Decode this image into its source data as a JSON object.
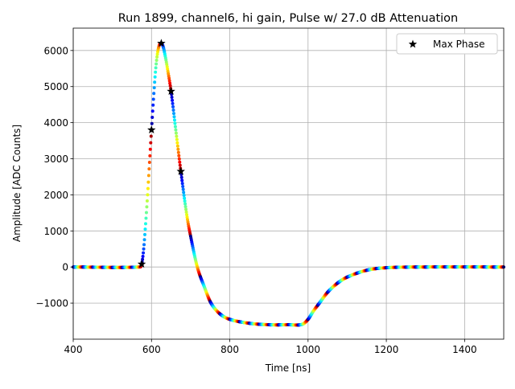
{
  "chart_data": {
    "type": "scatter",
    "title": "Run 1899, channel6, hi gain, Pulse w/ 27.0 dB Attenuation",
    "xlabel": "Time [ns]",
    "ylabel": "Amplitude [ADC Counts]",
    "xlim": [
      400,
      1500
    ],
    "ylim": [
      -2000,
      6620
    ],
    "xticks": [
      400,
      600,
      800,
      1000,
      1200,
      1400
    ],
    "xtick_labels": [
      "400",
      "600",
      "800",
      "1000",
      "1200",
      "1400"
    ],
    "yticks": [
      -1000,
      0,
      1000,
      2000,
      3000,
      4000,
      5000,
      6000
    ],
    "ytick_labels": [
      "−1000",
      "0",
      "1000",
      "2000",
      "3000",
      "4000",
      "5000",
      "6000"
    ],
    "grid": true,
    "legend_placement": "top-right",
    "colormap": "jet",
    "color_period_ns": 25,
    "pulse_curve": {
      "x": [
        400,
        570,
        575,
        580,
        585,
        590,
        595,
        600,
        605,
        610,
        615,
        620,
        625,
        630,
        635,
        640,
        650,
        662,
        675,
        690,
        700,
        717,
        735,
        752,
        775,
        800,
        850,
        900,
        950,
        985,
        1000,
        1015,
        1029,
        1050,
        1075,
        1100,
        1150,
        1200,
        1300,
        1500
      ],
      "y": [
        0,
        0,
        80,
        500,
        1200,
        2000,
        2900,
        3800,
        4650,
        5400,
        5900,
        6150,
        6200,
        6100,
        5850,
        5550,
        4870,
        3800,
        2650,
        1450,
        850,
        0,
        -550,
        -1000,
        -1300,
        -1450,
        -1560,
        -1600,
        -1600,
        -1590,
        -1450,
        -1200,
        -1000,
        -700,
        -450,
        -280,
        -90,
        -20,
        0,
        0
      ]
    },
    "series": [
      {
        "name": "Max Phase",
        "marker": "star",
        "color": "#000000",
        "x": [
          575,
          600,
          625,
          650,
          675
        ],
        "y": [
          80,
          3800,
          6200,
          4870,
          2650
        ]
      }
    ]
  }
}
